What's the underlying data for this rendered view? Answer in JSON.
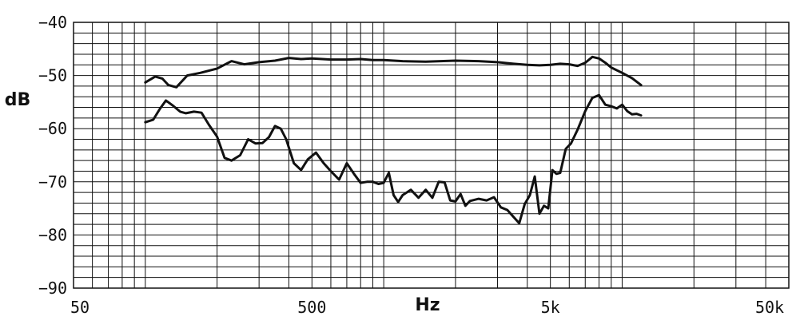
{
  "chart_data": {
    "type": "line",
    "xlabel": "Hz",
    "ylabel": "dB",
    "x_scale": "log",
    "xlim": [
      50,
      50000
    ],
    "ylim": [
      -90,
      -40
    ],
    "grid": true,
    "x_ticks": [
      {
        "value": 50,
        "label": "50"
      },
      {
        "value": 500,
        "label": "500"
      },
      {
        "value": 5000,
        "label": "5k"
      },
      {
        "value": 50000,
        "label": "50k"
      }
    ],
    "y_ticks": [
      {
        "value": -40,
        "label": "−40"
      },
      {
        "value": -50,
        "label": "−50"
      },
      {
        "value": -60,
        "label": "−60"
      },
      {
        "value": -70,
        "label": "−70"
      },
      {
        "value": -80,
        "label": "−80"
      },
      {
        "value": -90,
        "label": "−90"
      }
    ],
    "series": [
      {
        "x": [
          100,
          110,
          118,
          125,
          135,
          150,
          170,
          200,
          230,
          260,
          300,
          350,
          400,
          450,
          500,
          600,
          700,
          800,
          900,
          1000,
          1200,
          1500,
          2000,
          2500,
          3000,
          3500,
          4000,
          4500,
          5000,
          5500,
          6000,
          6500,
          7000,
          7500,
          8000,
          8500,
          9000,
          10000,
          11000,
          12000
        ],
        "y": [
          -51.3,
          -50.2,
          -50.6,
          -51.8,
          -52.2,
          -50,
          -49.5,
          -48.7,
          -47.3,
          -47.9,
          -47.5,
          -47.2,
          -46.7,
          -46.9,
          -46.8,
          -47,
          -47,
          -46.9,
          -47.1,
          -47.1,
          -47.3,
          -47.4,
          -47.2,
          -47.3,
          -47.5,
          -47.8,
          -48,
          -48.1,
          -48,
          -47.8,
          -47.9,
          -48.2,
          -47.6,
          -46.5,
          -46.8,
          -47.6,
          -48.5,
          -49.5,
          -50.5,
          -51.8
        ]
      },
      {
        "x": [
          100,
          108,
          115,
          122,
          130,
          140,
          148,
          160,
          172,
          185,
          200,
          215,
          230,
          250,
          270,
          290,
          310,
          330,
          350,
          370,
          390,
          420,
          450,
          480,
          520,
          560,
          600,
          650,
          700,
          750,
          800,
          850,
          900,
          950,
          1000,
          1050,
          1100,
          1150,
          1200,
          1300,
          1400,
          1500,
          1600,
          1700,
          1800,
          1900,
          2000,
          2100,
          2200,
          2300,
          2500,
          2700,
          2900,
          3100,
          3300,
          3500,
          3700,
          3900,
          4100,
          4300,
          4500,
          4700,
          4900,
          5100,
          5300,
          5500,
          5800,
          6100,
          6500,
          7000,
          7500,
          8000,
          8500,
          9000,
          9500,
          10000,
          10500,
          11000,
          11500,
          12000
        ],
        "y": [
          -58.8,
          -58.3,
          -56.3,
          -54.7,
          -55.6,
          -56.8,
          -57.1,
          -56.8,
          -57,
          -59.3,
          -61.5,
          -65.5,
          -66,
          -65,
          -62,
          -62.8,
          -62.7,
          -61.6,
          -59.5,
          -60,
          -62,
          -66.5,
          -67.8,
          -65.8,
          -64.5,
          -66.5,
          -68,
          -69.6,
          -66.5,
          -68.5,
          -70.2,
          -70,
          -70,
          -70.4,
          -70.2,
          -68.3,
          -72.5,
          -73.8,
          -72.5,
          -71.5,
          -73,
          -71.5,
          -73,
          -70,
          -70.1,
          -73.5,
          -73.7,
          -72.3,
          -74.5,
          -73.6,
          -73.2,
          -73.5,
          -72.9,
          -74.8,
          -75.3,
          -76.6,
          -77.8,
          -74.2,
          -72.5,
          -69,
          -76,
          -74.5,
          -75,
          -67.8,
          -68.5,
          -68.3,
          -63.8,
          -62.8,
          -60.2,
          -56.7,
          -54.2,
          -53.7,
          -55.5,
          -55.8,
          -56.2,
          -55.5,
          -56.7,
          -57.3,
          -57.2,
          -57.5
        ]
      }
    ]
  }
}
